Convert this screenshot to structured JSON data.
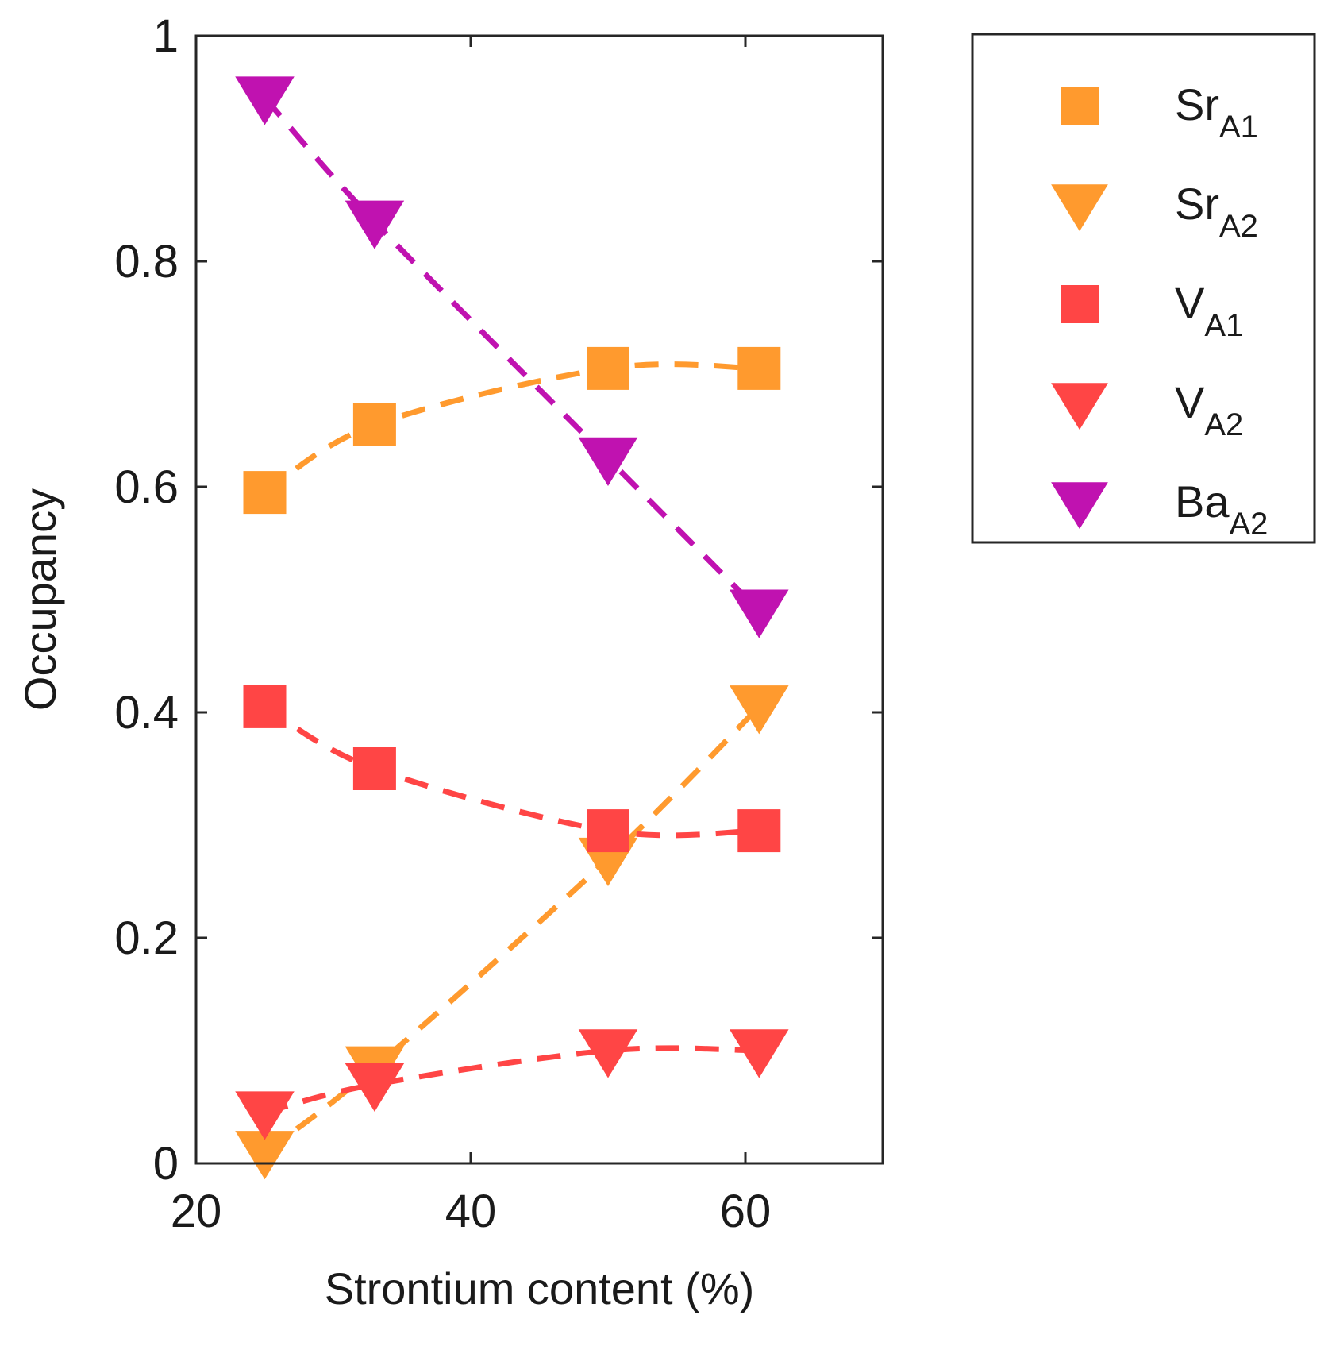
{
  "chart_data": {
    "type": "line",
    "title": "",
    "xlabel": "Strontium content (%)",
    "ylabel": "Occupancy",
    "xlim": [
      20,
      70
    ],
    "ylim": [
      0,
      1
    ],
    "xticks": [
      20,
      40,
      60
    ],
    "xtick_labels": [
      "20",
      "40",
      "60"
    ],
    "yticks": [
      0,
      0.2,
      0.4,
      0.6,
      0.8,
      1
    ],
    "ytick_labels": [
      "0",
      "0.2",
      "0.4",
      "0.6",
      "0.8",
      "1"
    ],
    "grid": false,
    "legend_position": "outside-right-top",
    "x": [
      25,
      33,
      50,
      61
    ],
    "series": [
      {
        "name": "SrA1",
        "label_main": "Sr",
        "label_sub": "A1",
        "marker": "square",
        "color": "#ff9a2e",
        "values": [
          0.595,
          0.655,
          0.705,
          0.705
        ]
      },
      {
        "name": "SrA2",
        "label_main": "Sr",
        "label_sub": "A2",
        "marker": "triangle-down",
        "color": "#ff9a2e",
        "values": [
          0.01,
          0.085,
          0.27,
          0.405
        ]
      },
      {
        "name": "VA1",
        "label_main": "V",
        "label_sub": "A1",
        "marker": "square",
        "color": "#ff4545",
        "values": [
          0.405,
          0.35,
          0.295,
          0.295
        ]
      },
      {
        "name": "VA2",
        "label_main": "V",
        "label_sub": "A2",
        "marker": "triangle-down",
        "color": "#ff4545",
        "values": [
          0.045,
          0.07,
          0.1,
          0.1
        ]
      },
      {
        "name": "BaA2",
        "label_main": "Ba",
        "label_sub": "A2",
        "marker": "triangle-down",
        "color": "#c012b0",
        "values": [
          0.945,
          0.835,
          0.625,
          0.49
        ]
      }
    ]
  }
}
